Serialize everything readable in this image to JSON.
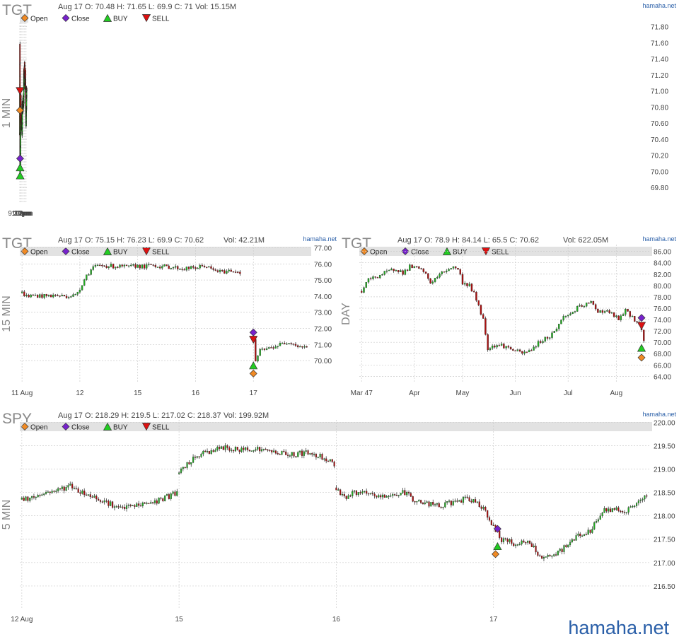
{
  "footer": {
    "brand": "hamaha.net"
  },
  "legend_labels": {
    "open": "Open",
    "close": "Close",
    "buy": "BUY",
    "sell": "SELL"
  },
  "colors": {
    "open": "#f08a24",
    "close": "#7722cc",
    "buy": "#22cc22",
    "sell": "#dd1111",
    "up": "#22aa22",
    "down": "#aa1111",
    "wick": "#222222",
    "grid": "#cccccc",
    "legend_bar": "#e2e2e2",
    "brand": "#2a5fa8",
    "ticker": "#888888"
  },
  "chart_data": [
    {
      "type": "candlestick",
      "ticker": "TGT",
      "timeframe": "1 MIN",
      "info": "Aug 17 O: 70.48 H: 71.65 L: 69.9 C: 71",
      "volume": "Vol: 15.15M",
      "source": "hamaha.net",
      "ylim": [
        69.6,
        71.85
      ],
      "yticks": [
        "71.80",
        "71.60",
        "71.40",
        "71.20",
        "71.00",
        "70.80",
        "70.60",
        "70.40",
        "70.20",
        "70.00",
        "69.80"
      ],
      "xticks": [
        {
          "label": "9:30am",
          "at": 0
        },
        {
          "label": "10am",
          "at": 30
        },
        {
          "label": "11am",
          "at": 90
        },
        {
          "label": "12pm",
          "at": 150
        },
        {
          "label": "1pm",
          "at": 210
        },
        {
          "label": "2pm",
          "at": 270
        }
      ],
      "xlim": [
        0,
        306
      ],
      "path": [
        [
          0,
          70.48
        ],
        [
          2,
          70.95
        ],
        [
          4,
          71.1
        ],
        [
          6,
          71.6
        ],
        [
          7,
          71.35
        ],
        [
          9,
          70.95
        ],
        [
          10,
          70.75
        ],
        [
          12,
          70.2
        ],
        [
          14,
          70.0
        ],
        [
          16,
          70.4
        ],
        [
          18,
          70.2
        ],
        [
          20,
          69.95
        ],
        [
          22,
          70.35
        ],
        [
          24,
          70.55
        ],
        [
          26,
          70.15
        ],
        [
          28,
          70.2
        ],
        [
          30,
          70.05
        ],
        [
          33,
          70.35
        ],
        [
          36,
          70.6
        ],
        [
          40,
          70.75
        ],
        [
          44,
          70.85
        ],
        [
          47,
          70.95
        ],
        [
          50,
          70.7
        ],
        [
          54,
          70.55
        ],
        [
          60,
          70.55
        ],
        [
          66,
          70.6
        ],
        [
          72,
          70.65
        ],
        [
          80,
          70.6
        ],
        [
          86,
          70.65
        ],
        [
          90,
          70.7
        ],
        [
          95,
          70.6
        ],
        [
          98,
          70.45
        ],
        [
          102,
          70.5
        ],
        [
          106,
          70.65
        ],
        [
          110,
          70.8
        ],
        [
          116,
          70.85
        ],
        [
          120,
          70.75
        ],
        [
          126,
          70.8
        ],
        [
          132,
          70.75
        ],
        [
          138,
          70.85
        ],
        [
          144,
          70.9
        ],
        [
          150,
          70.92
        ],
        [
          154,
          70.85
        ],
        [
          160,
          70.82
        ],
        [
          166,
          70.85
        ],
        [
          172,
          70.95
        ],
        [
          176,
          71.15
        ],
        [
          178,
          71.3
        ],
        [
          180,
          71.05
        ],
        [
          184,
          71.15
        ],
        [
          188,
          71.1
        ],
        [
          194,
          71.18
        ],
        [
          200,
          71.2
        ],
        [
          206,
          71.3
        ],
        [
          210,
          71.35
        ],
        [
          214,
          71.25
        ],
        [
          218,
          71.2
        ],
        [
          222,
          71.05
        ],
        [
          226,
          71.1
        ],
        [
          232,
          71.1
        ],
        [
          236,
          71.2
        ],
        [
          240,
          71.25
        ],
        [
          244,
          71.1
        ],
        [
          248,
          71.05
        ],
        [
          254,
          71.0
        ],
        [
          260,
          70.9
        ],
        [
          264,
          70.7
        ],
        [
          268,
          70.55
        ],
        [
          272,
          70.6
        ],
        [
          276,
          70.7
        ],
        [
          280,
          70.8
        ],
        [
          284,
          70.75
        ],
        [
          288,
          70.9
        ],
        [
          292,
          70.98
        ],
        [
          296,
          71.05
        ],
        [
          300,
          71.02
        ]
      ],
      "markers": [
        {
          "kind": "sell",
          "x": 9,
          "y": 71.0
        },
        {
          "kind": "open",
          "x": 9,
          "y": 70.76
        },
        {
          "kind": "close",
          "x": 14,
          "y": 70.16
        },
        {
          "kind": "buy",
          "x": 12,
          "y": 70.05
        },
        {
          "kind": "buy",
          "x": 16,
          "y": 69.95
        }
      ]
    },
    {
      "type": "candlestick",
      "ticker": "TGT",
      "timeframe": "15 MIN",
      "info": "Aug 17 O: 75.15 H: 76.23 L: 69.9 C: 70.62",
      "volume": "Vol: 42.21M",
      "source": "hamaha.net",
      "ylim": [
        68.6,
        77.2
      ],
      "yticks": [
        "77.00",
        "76.00",
        "75.00",
        "74.00",
        "73.00",
        "72.00",
        "71.00",
        "70.00"
      ],
      "xticks": [
        {
          "label": "11 Aug",
          "at": 0
        },
        {
          "label": "12",
          "at": 26
        },
        {
          "label": "15",
          "at": 52
        },
        {
          "label": "16",
          "at": 78
        },
        {
          "label": "17",
          "at": 104
        }
      ],
      "xlim": [
        -1,
        130
      ],
      "segments": [
        [
          [
            0,
            74.2
          ],
          [
            2,
            74.0
          ],
          [
            6,
            74.05
          ],
          [
            10,
            74.0
          ],
          [
            14,
            74.05
          ],
          [
            20,
            74.0
          ],
          [
            24,
            74.05
          ],
          [
            26,
            74.5
          ],
          [
            29,
            75.3
          ],
          [
            32,
            75.8
          ],
          [
            36,
            75.9
          ],
          [
            42,
            75.85
          ],
          [
            48,
            75.8
          ],
          [
            52,
            75.9
          ],
          [
            55,
            75.8
          ],
          [
            58,
            75.95
          ],
          [
            62,
            75.85
          ],
          [
            68,
            75.8
          ],
          [
            72,
            75.7
          ],
          [
            78,
            75.75
          ],
          [
            82,
            75.9
          ],
          [
            86,
            75.6
          ],
          [
            90,
            75.5
          ],
          [
            94,
            75.6
          ],
          [
            98,
            75.5
          ]
        ],
        [
          [
            104,
            71.2
          ],
          [
            105,
            70.0
          ],
          [
            107,
            70.6
          ],
          [
            112,
            70.8
          ],
          [
            116,
            71.0
          ],
          [
            120,
            71.2
          ],
          [
            124,
            70.9
          ],
          [
            128,
            70.8
          ]
        ]
      ],
      "markers": [
        {
          "kind": "close",
          "x": 104,
          "y": 71.75
        },
        {
          "kind": "sell",
          "x": 104,
          "y": 71.3
        },
        {
          "kind": "buy",
          "x": 104,
          "y": 69.7
        },
        {
          "kind": "open",
          "x": 104,
          "y": 69.2
        }
      ]
    },
    {
      "type": "candlestick",
      "ticker": "TGT",
      "timeframe": "DAY",
      "info": "Aug 17 O: 78.9 H: 84.14 L: 65.5 C: 70.62",
      "volume": "Vol: 622.05M",
      "source": "hamaha.net",
      "ylim": [
        62.8,
        87.2
      ],
      "yticks": [
        "86.00",
        "84.00",
        "82.00",
        "80.00",
        "78.00",
        "76.00",
        "74.00",
        "72.00",
        "70.00",
        "68.00",
        "66.00",
        "64.00"
      ],
      "xticks": [
        {
          "label": "Mar 47",
          "at": 0
        },
        {
          "label": "Apr",
          "at": 23
        },
        {
          "label": "May",
          "at": 44
        },
        {
          "label": "Jun",
          "at": 67
        },
        {
          "label": "Jul",
          "at": 90
        },
        {
          "label": "Aug",
          "at": 111
        }
      ],
      "xlim": [
        -1,
        126
      ],
      "path": [
        [
          0,
          79.0
        ],
        [
          3,
          81.0
        ],
        [
          6,
          81.5
        ],
        [
          9,
          82.0
        ],
        [
          12,
          82.5
        ],
        [
          15,
          83.0
        ],
        [
          18,
          82.2
        ],
        [
          21,
          83.3
        ],
        [
          24,
          83.0
        ],
        [
          27,
          82.5
        ],
        [
          30,
          80.5
        ],
        [
          33,
          81.5
        ],
        [
          36,
          82.5
        ],
        [
          39,
          83.2
        ],
        [
          42,
          83.0
        ],
        [
          44,
          80.5
        ],
        [
          47,
          80.0
        ],
        [
          49,
          78.5
        ],
        [
          51,
          76.5
        ],
        [
          53,
          74.0
        ],
        [
          55,
          69.0
        ],
        [
          58,
          69.5
        ],
        [
          61,
          69.5
        ],
        [
          64,
          69.0
        ],
        [
          67,
          68.5
        ],
        [
          70,
          68.0
        ],
        [
          73,
          68.5
        ],
        [
          76,
          69.5
        ],
        [
          79,
          70.5
        ],
        [
          82,
          71.0
        ],
        [
          85,
          72.5
        ],
        [
          88,
          74.5
        ],
        [
          91,
          75.0
        ],
        [
          94,
          76.0
        ],
        [
          97,
          76.5
        ],
        [
          100,
          77.0
        ],
        [
          103,
          75.5
        ],
        [
          106,
          75.5
        ],
        [
          109,
          75.0
        ],
        [
          112,
          74.0
        ],
        [
          115,
          75.5
        ],
        [
          118,
          74.5
        ],
        [
          121,
          73.0
        ],
        [
          123,
          70.6
        ]
      ],
      "markers": [
        {
          "kind": "close",
          "x": 122,
          "y": 74.3
        },
        {
          "kind": "sell",
          "x": 122,
          "y": 72.9
        },
        {
          "kind": "buy",
          "x": 122,
          "y": 69.0
        },
        {
          "kind": "open",
          "x": 122,
          "y": 67.3
        }
      ]
    },
    {
      "type": "candlestick",
      "ticker": "SPY",
      "timeframe": "5 MIN",
      "info": "Aug 17 O: 218.29 H: 219.5 L: 217.02 C: 218.37",
      "volume": "Vol: 199.92M",
      "source": "hamaha.net",
      "ylim": [
        216.0,
        220.05
      ],
      "yticks": [
        "220.00",
        "219.50",
        "219.00",
        "218.50",
        "218.00",
        "217.50",
        "217.00",
        "216.50"
      ],
      "xticks": [
        {
          "label": "12 Aug",
          "at": 0
        },
        {
          "label": "15",
          "at": 78
        },
        {
          "label": "16",
          "at": 156
        },
        {
          "label": "17",
          "at": 234
        }
      ],
      "xlim": [
        -1,
        312
      ],
      "segments": [
        [
          [
            0,
            218.35
          ],
          [
            6,
            218.4
          ],
          [
            12,
            218.5
          ],
          [
            18,
            218.55
          ],
          [
            24,
            218.65
          ],
          [
            30,
            218.5
          ],
          [
            36,
            218.4
          ],
          [
            42,
            218.3
          ],
          [
            48,
            218.15
          ],
          [
            54,
            218.2
          ],
          [
            60,
            218.25
          ],
          [
            66,
            218.3
          ],
          [
            72,
            218.4
          ],
          [
            77,
            218.5
          ]
        ],
        [
          [
            78,
            218.9
          ],
          [
            82,
            219.1
          ],
          [
            88,
            219.3
          ],
          [
            94,
            219.4
          ],
          [
            100,
            219.45
          ],
          [
            108,
            219.4
          ],
          [
            114,
            219.45
          ],
          [
            120,
            219.4
          ],
          [
            128,
            219.35
          ],
          [
            134,
            219.3
          ],
          [
            140,
            219.35
          ],
          [
            146,
            219.3
          ],
          [
            150,
            219.25
          ],
          [
            155,
            219.1
          ]
        ],
        [
          [
            156,
            218.6
          ],
          [
            160,
            218.4
          ],
          [
            166,
            218.5
          ],
          [
            172,
            218.45
          ],
          [
            178,
            218.4
          ],
          [
            184,
            218.45
          ],
          [
            190,
            218.5
          ],
          [
            196,
            218.3
          ],
          [
            202,
            218.25
          ],
          [
            208,
            218.2
          ],
          [
            214,
            218.3
          ],
          [
            220,
            218.35
          ],
          [
            226,
            218.3
          ],
          [
            230,
            218.1
          ],
          [
            234,
            217.75
          ],
          [
            238,
            217.5
          ],
          [
            244,
            217.4
          ],
          [
            250,
            217.45
          ],
          [
            254,
            217.3
          ],
          [
            258,
            217.1
          ],
          [
            262,
            217.1
          ],
          [
            266,
            217.2
          ],
          [
            270,
            217.35
          ],
          [
            276,
            217.6
          ],
          [
            282,
            217.65
          ],
          [
            288,
            218.1
          ],
          [
            294,
            218.15
          ],
          [
            300,
            218.1
          ],
          [
            306,
            218.3
          ],
          [
            310,
            218.4
          ]
        ]
      ],
      "markers": [
        {
          "kind": "close",
          "x": 236,
          "y": 217.72
        },
        {
          "kind": "buy",
          "x": 236,
          "y": 217.35
        },
        {
          "kind": "open",
          "x": 235,
          "y": 217.18
        }
      ]
    }
  ]
}
